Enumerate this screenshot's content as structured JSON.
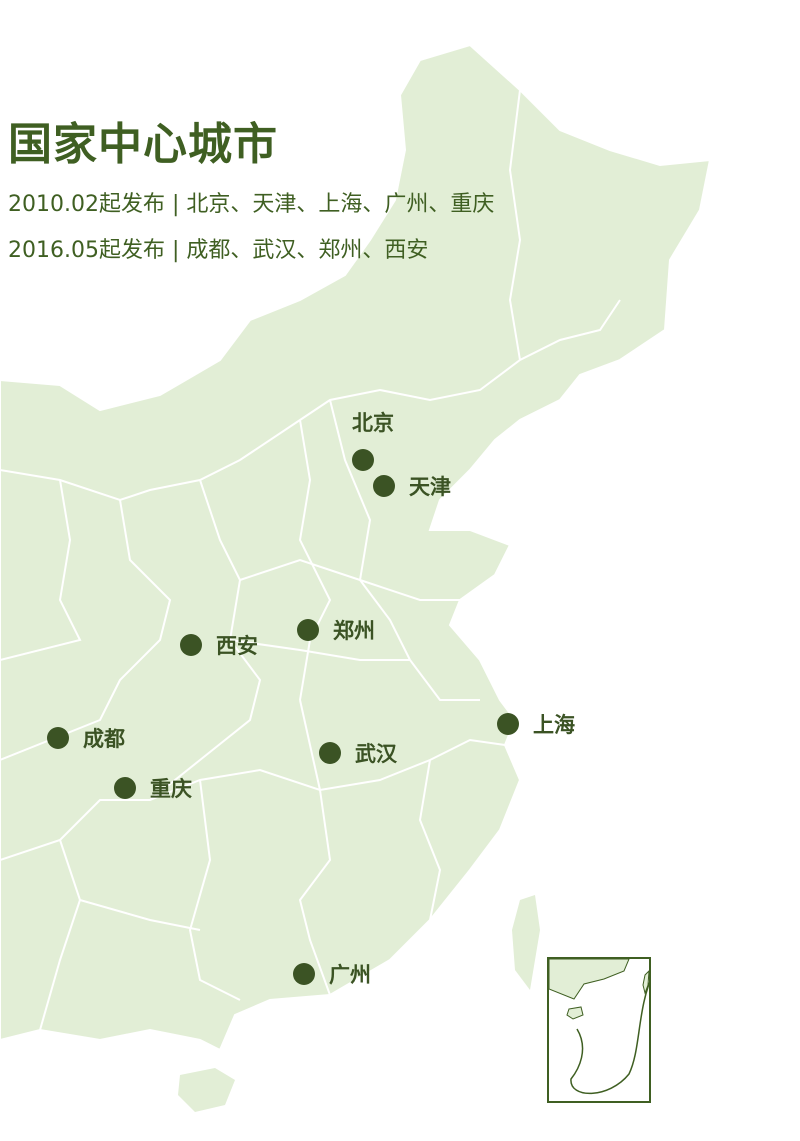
{
  "title": "国家中心城市",
  "subtitles": [
    "2010.02起发布 | 北京、天津、上海、广州、重庆",
    "2016.05起发布 | 成都、武汉、郑州、西安"
  ],
  "colors": {
    "land": "#e2eed6",
    "border": "#ffffff",
    "text": "#3f5f22",
    "marker": "#3b5324"
  },
  "cities": [
    {
      "name": "北京",
      "label_position": "top"
    },
    {
      "name": "天津",
      "label_position": "right"
    },
    {
      "name": "郑州",
      "label_position": "right"
    },
    {
      "name": "西安",
      "label_position": "right"
    },
    {
      "name": "上海",
      "label_position": "right"
    },
    {
      "name": "成都",
      "label_position": "right"
    },
    {
      "name": "武汉",
      "label_position": "right"
    },
    {
      "name": "重庆",
      "label_position": "right"
    },
    {
      "name": "广州",
      "label_position": "right"
    }
  ],
  "inset": {
    "description_icon": "south-china-sea-inset"
  }
}
